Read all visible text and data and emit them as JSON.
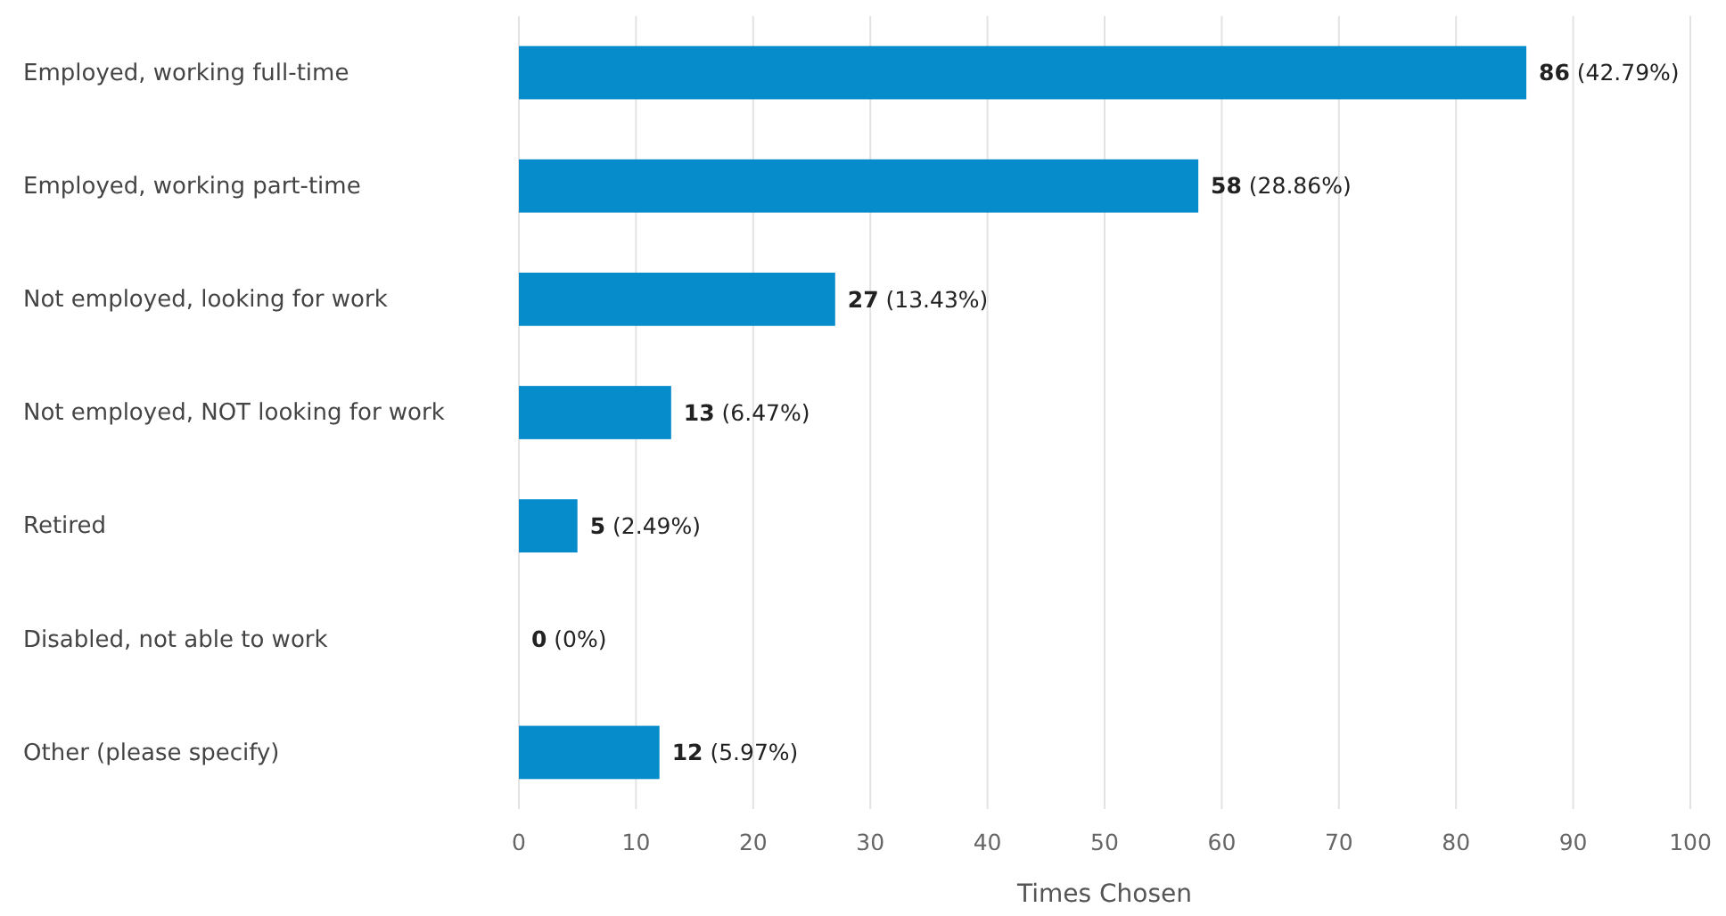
{
  "chart_data": {
    "type": "bar",
    "orientation": "horizontal",
    "xlabel": "Times Chosen",
    "categories": [
      "Employed, working full-time",
      "Employed, working part-time",
      "Not employed, looking for work",
      "Not employed, NOT looking for work",
      "Retired",
      "Disabled, not able to work",
      "Other (please specify)"
    ],
    "values": [
      86,
      58,
      27,
      13,
      5,
      0,
      12
    ],
    "value_labels": [
      "86 (42.79%)",
      "58 (28.86%)",
      "27 (13.43%)",
      "13 (6.47%)",
      "5 (2.49%)",
      "0 (0%)",
      "12 (5.97%)"
    ],
    "color": "#068ccb",
    "xlim": [
      0,
      100
    ],
    "xticks": [
      0,
      10,
      20,
      30,
      40,
      50,
      60,
      70,
      80,
      90,
      100
    ],
    "grid": "x"
  }
}
